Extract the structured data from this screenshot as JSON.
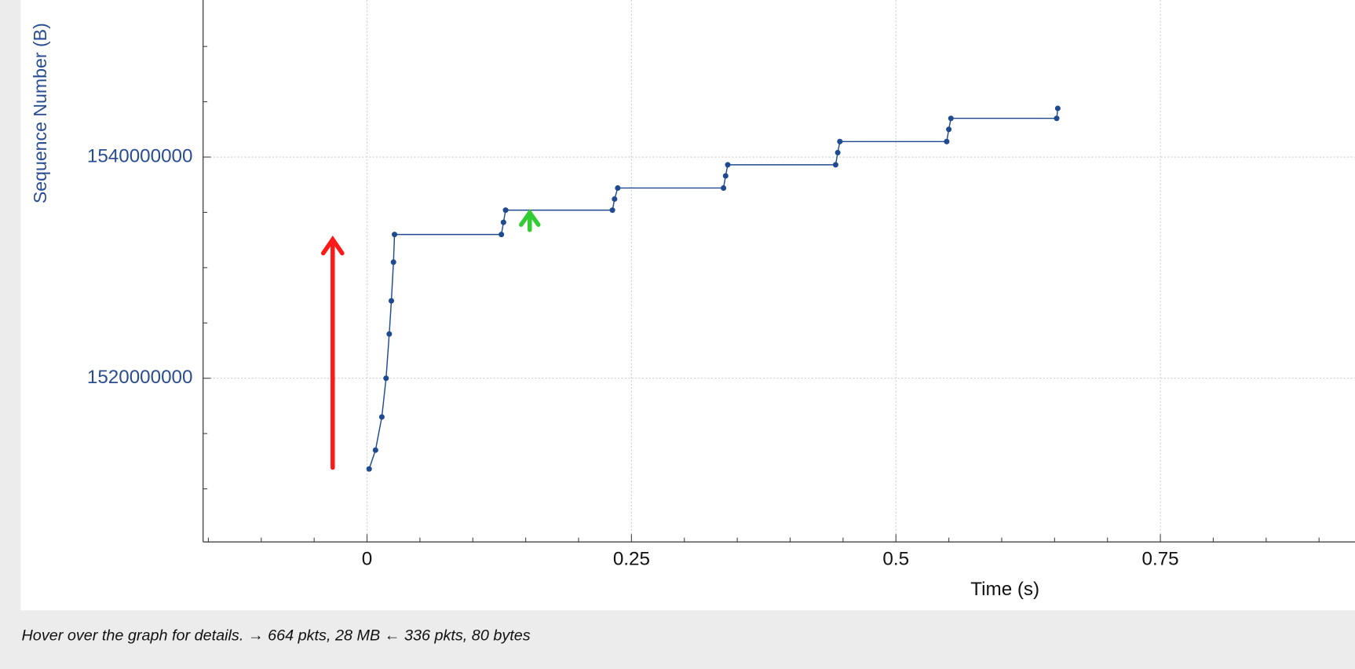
{
  "chart_data": {
    "type": "scatter",
    "xlabel": "Time (s)",
    "ylabel": "Sequence Number (B)",
    "xlim": [
      -0.155,
      0.934
    ],
    "ylim": [
      1505200000,
      1554200000
    ],
    "xticks": [
      0,
      0.25,
      0.5,
      0.75
    ],
    "yticks": [
      1520000000,
      1540000000
    ],
    "xticks_minor": [
      -0.15,
      -0.1,
      -0.05,
      0.05,
      0.1,
      0.15,
      0.2,
      0.3,
      0.35,
      0.4,
      0.45,
      0.55,
      0.6,
      0.65,
      0.7,
      0.8,
      0.85,
      0.9
    ],
    "yticks_minor": [
      1510000000,
      1515000000,
      1525000000,
      1530000000,
      1535000000,
      1545000000,
      1550000000
    ],
    "grid": true,
    "series": [
      {
        "color": "#1f4a8f",
        "x": [
          0.002,
          0.008,
          0.014,
          0.018,
          0.021,
          0.023,
          0.025,
          0.026,
          0.127,
          0.129,
          0.131,
          0.232,
          0.234,
          0.237,
          0.337,
          0.339,
          0.341,
          0.443,
          0.445,
          0.447,
          0.548,
          0.55,
          0.552,
          0.652,
          0.653
        ],
        "values": [
          1511800000,
          1513500000,
          1516500000,
          1520000000,
          1524000000,
          1527000000,
          1530500000,
          1533000000,
          1533000000,
          1534100000,
          1535200000,
          1535200000,
          1536200000,
          1537200000,
          1537200000,
          1538300000,
          1539300000,
          1539300000,
          1540400000,
          1541400000,
          1541400000,
          1542500000,
          1543500000,
          1543500000,
          1544400000
        ]
      }
    ]
  },
  "status_text": "Hover over the graph for details. → 664 pkts, 28 MB ← 336 pkts, 80 bytes"
}
